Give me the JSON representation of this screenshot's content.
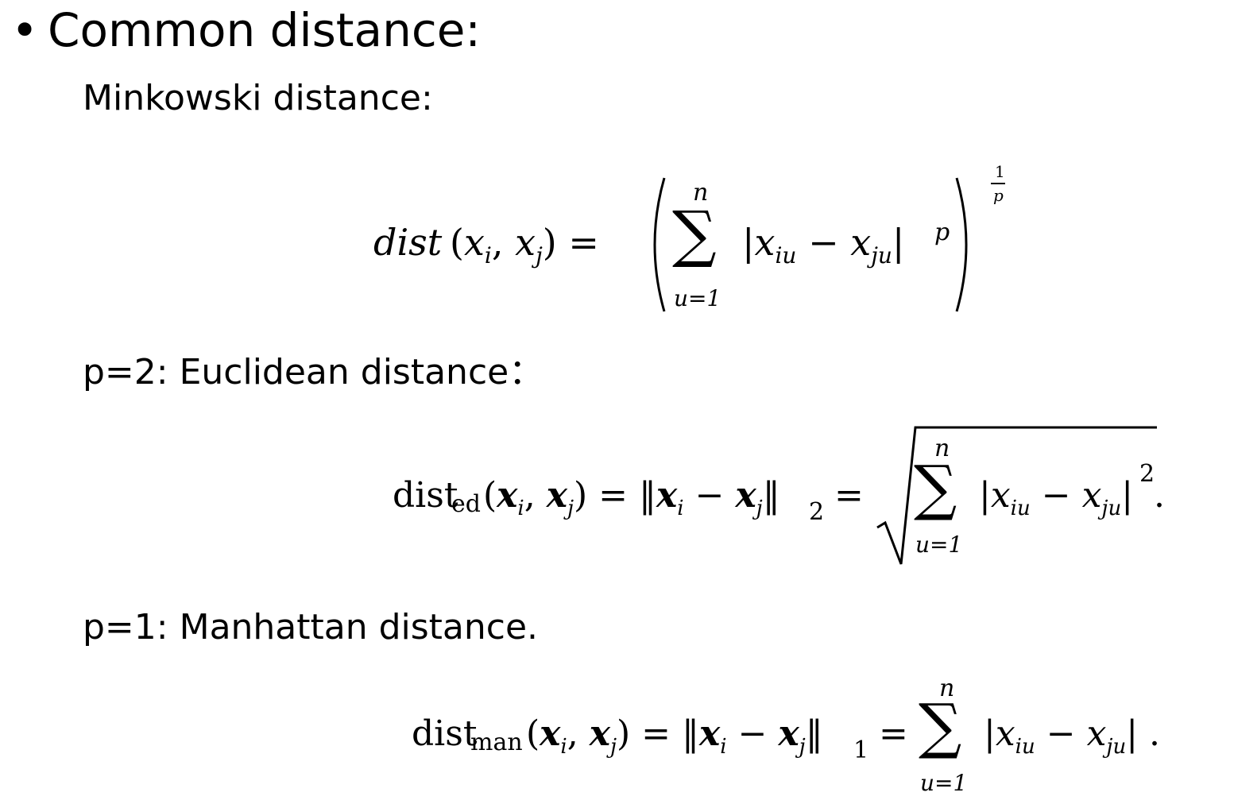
{
  "heading": {
    "bullet": "•",
    "text": "Common distance:"
  },
  "minkowski": {
    "label": "Minkowski distance:",
    "lhs": "dist",
    "sum_upper": "n",
    "sum_lower": "u=1",
    "exp_num": "1",
    "exp_den": "p",
    "power": "p"
  },
  "euclidean": {
    "label": "p=2: Euclidean distance：",
    "func": "dist",
    "subscript": "ed",
    "norm_sub": "2",
    "sum_upper": "n",
    "sum_lower": "u=1",
    "power": "2"
  },
  "manhattan": {
    "label": "p=1: Manhattan distance.",
    "func": "dist",
    "subscript": "man",
    "norm_sub": "1",
    "sum_upper": "n",
    "sum_lower": "u=1"
  }
}
